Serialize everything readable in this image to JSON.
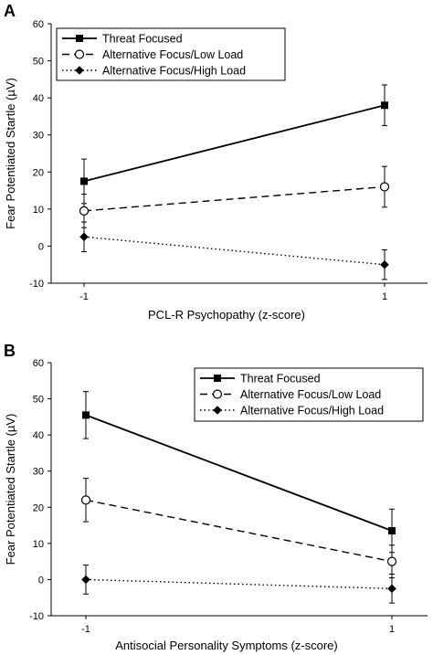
{
  "chart_data": [
    {
      "type": "line",
      "panel_label": "A",
      "xlabel": "PCL-R Psychopathy (z-score)",
      "ylabel": "Fear Potentiated Startle (µV)",
      "x": [
        -1,
        1
      ],
      "x_tick_labels": [
        "-1",
        "1"
      ],
      "ylim": [
        -10,
        60
      ],
      "y_ticks": [
        -10,
        0,
        10,
        20,
        30,
        40,
        50,
        60
      ],
      "legend_position": "top-left",
      "grid": false,
      "series": [
        {
          "name": "Threat Focused",
          "values": [
            17.5,
            38
          ],
          "errors": [
            6,
            5.5
          ],
          "marker": "square",
          "dash": "solid"
        },
        {
          "name": "Alternative Focus/Low Load",
          "values": [
            9.5,
            16
          ],
          "errors": [
            4.5,
            5.5
          ],
          "marker": "open-circle",
          "dash": "dashed"
        },
        {
          "name": "Alternative Focus/High Load",
          "values": [
            2.5,
            -5
          ],
          "errors": [
            4,
            4
          ],
          "marker": "diamond",
          "dash": "dotted"
        }
      ]
    },
    {
      "type": "line",
      "panel_label": "B",
      "xlabel": "Antisocial Personality Symptoms (z-score)",
      "ylabel": "Fear Potentiated Startle (µV)",
      "x": [
        -1,
        1
      ],
      "x_tick_labels": [
        "-1",
        "1"
      ],
      "ylim": [
        -10,
        60
      ],
      "y_ticks": [
        -10,
        0,
        10,
        20,
        30,
        40,
        50,
        60
      ],
      "legend_position": "top-right",
      "grid": false,
      "series": [
        {
          "name": "Threat Focused",
          "values": [
            45.5,
            13.5
          ],
          "errors": [
            6.5,
            6
          ],
          "marker": "square",
          "dash": "solid"
        },
        {
          "name": "Alternative Focus/Low Load",
          "values": [
            22,
            5
          ],
          "errors": [
            6,
            4.5
          ],
          "marker": "open-circle",
          "dash": "dashed"
        },
        {
          "name": "Alternative Focus/High Load",
          "values": [
            0,
            -2.5
          ],
          "errors": [
            4,
            4
          ],
          "marker": "diamond",
          "dash": "dotted"
        }
      ]
    }
  ]
}
